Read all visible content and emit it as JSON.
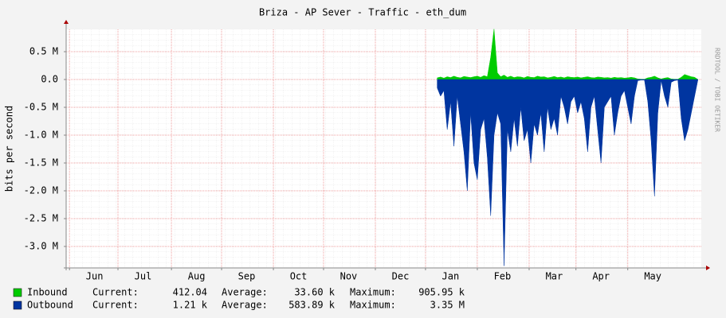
{
  "chart_data": {
    "type": "area",
    "title": "Briza - AP Sever - Traffic - eth_dum",
    "y_label": "bits per second",
    "watermark": "RRDTOOL / TOBI OETIKER",
    "xlim": [
      0,
      380
    ],
    "xticks": [
      {
        "value": 2,
        "label": "Jun"
      },
      {
        "value": 31,
        "label": "Jul"
      },
      {
        "value": 63,
        "label": "Aug"
      },
      {
        "value": 93,
        "label": "Sep"
      },
      {
        "value": 124,
        "label": "Oct"
      },
      {
        "value": 154,
        "label": "Nov"
      },
      {
        "value": 185,
        "label": "Dec"
      },
      {
        "value": 215,
        "label": "Jan"
      },
      {
        "value": 246,
        "label": "Feb"
      },
      {
        "value": 277,
        "label": "Mar"
      },
      {
        "value": 305,
        "label": "Apr"
      },
      {
        "value": 336,
        "label": "May"
      }
    ],
    "ylim": [
      -3386000,
      900000
    ],
    "yticks": [
      {
        "value": -3000000,
        "label": "-3.0 M"
      },
      {
        "value": -2500000,
        "label": "-2.5 M"
      },
      {
        "value": -2000000,
        "label": "-2.0 M"
      },
      {
        "value": -1500000,
        "label": "-1.5 M"
      },
      {
        "value": -1000000,
        "label": "-1.0 M"
      },
      {
        "value": -500000,
        "label": "-0.5 M"
      },
      {
        "value": 0,
        "label": "0.0"
      },
      {
        "value": 500000,
        "label": "0.5 M"
      }
    ],
    "grid": true,
    "x": [
      222,
      224,
      226,
      228,
      230,
      232,
      234,
      236,
      238,
      240,
      242,
      244,
      246,
      248,
      250,
      252,
      254,
      256,
      258,
      260,
      262,
      264,
      266,
      268,
      270,
      272,
      274,
      276,
      278,
      280,
      282,
      284,
      286,
      288,
      290,
      292,
      294,
      296,
      298,
      300,
      302,
      304,
      306,
      308,
      310,
      312,
      314,
      316,
      318,
      320,
      322,
      324,
      326,
      328,
      330,
      332,
      334,
      336,
      338,
      340,
      342,
      344,
      346,
      348,
      350,
      352,
      354,
      356,
      358,
      360,
      362,
      364,
      366,
      368,
      370,
      372,
      374,
      376,
      378
    ],
    "series": [
      {
        "name": "Inbound",
        "color": "#00cc00",
        "values": [
          30000,
          45000,
          25000,
          50000,
          35000,
          60000,
          40000,
          30000,
          55000,
          45000,
          35000,
          50000,
          60000,
          40000,
          70000,
          50000,
          400000,
          905950,
          120000,
          50000,
          80000,
          40000,
          60000,
          35000,
          50000,
          45000,
          30000,
          55000,
          40000,
          35000,
          60000,
          45000,
          50000,
          30000,
          40000,
          55000,
          35000,
          45000,
          30000,
          50000,
          40000,
          35000,
          45000,
          30000,
          40000,
          50000,
          35000,
          30000,
          45000,
          40000,
          30000,
          35000,
          25000,
          40000,
          30000,
          35000,
          25000,
          30000,
          40000,
          30000,
          10000,
          5000,
          5000,
          30000,
          40000,
          60000,
          30000,
          10000,
          25000,
          35000,
          10000,
          5000,
          5000,
          40000,
          90000,
          70000,
          50000,
          40000,
          412.04
        ],
        "stats": {
          "labels": [
            "Current:",
            "Average:",
            "Maximum:"
          ],
          "values": [
            412.04,
            33600,
            905950
          ],
          "value_labels": [
            "412.04",
            "33.60 k",
            "905.95 k"
          ]
        }
      },
      {
        "name": "Outbound",
        "color": "#0035a0",
        "values": [
          -150000,
          -300000,
          -200000,
          -900000,
          -400000,
          -1200000,
          -300000,
          -800000,
          -1300000,
          -2000000,
          -600000,
          -1500000,
          -1800000,
          -900000,
          -700000,
          -1400000,
          -2450000,
          -1000000,
          -600000,
          -800000,
          -3350000,
          -900000,
          -1300000,
          -700000,
          -1200000,
          -500000,
          -1100000,
          -900000,
          -1500000,
          -800000,
          -1000000,
          -600000,
          -1300000,
          -500000,
          -900000,
          -700000,
          -1000000,
          -300000,
          -500000,
          -800000,
          -400000,
          -300000,
          -600000,
          -400000,
          -700000,
          -1300000,
          -500000,
          -300000,
          -900000,
          -1500000,
          -500000,
          -400000,
          -300000,
          -1000000,
          -600000,
          -300000,
          -200000,
          -500000,
          -800000,
          -300000,
          -20000,
          -10000,
          -10000,
          -400000,
          -1100000,
          -2100000,
          -600000,
          -20000,
          -300000,
          -500000,
          -50000,
          -20000,
          -10000,
          -700000,
          -1100000,
          -900000,
          -600000,
          -300000,
          -1210
        ],
        "stats": {
          "labels": [
            "Current:",
            "Average:",
            "Maximum:"
          ],
          "values": [
            1210,
            583890,
            3350000
          ],
          "value_labels": [
            "1.21 k",
            "583.89 k",
            "3.35 M"
          ]
        }
      }
    ]
  }
}
